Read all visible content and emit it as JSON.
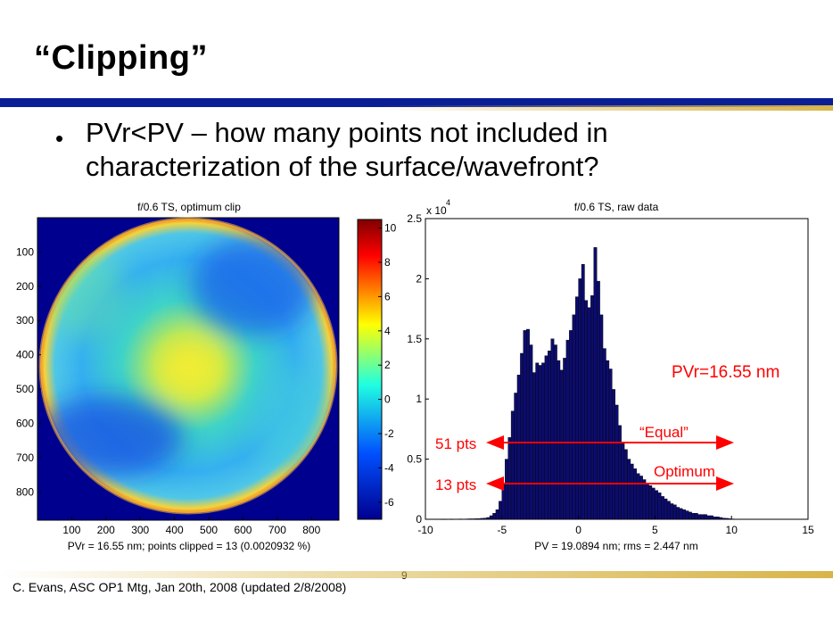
{
  "slide": {
    "title": "“Clipping”",
    "bullet": "PVr<PV – how many points not included in characterization of the surface/wavefront?",
    "slide_number": "9",
    "footer": "C. Evans, ASC OP1 Mtg, Jan 20th, 2008 (updated 2/8/2008)"
  },
  "colors": {
    "accent_bar": "#0a1e96",
    "gold": "#d8b44a",
    "annotation_red": "#ff0000",
    "bar_fill": "#0c0c6e"
  },
  "chart_data": [
    {
      "type": "heatmap",
      "title": "f/0.6 TS, optimum clip",
      "xlabel": "PVr = 16.55 nm; points clipped = 13 (0.0020932 %)",
      "x_ticks": [
        "100",
        "200",
        "300",
        "400",
        "500",
        "600",
        "700",
        "800"
      ],
      "y_ticks": [
        "100",
        "200",
        "300",
        "400",
        "500",
        "600",
        "700",
        "800"
      ],
      "colorbar_ticks": [
        "10",
        "8",
        "6",
        "4",
        "2",
        "0",
        "-2",
        "-4",
        "-6"
      ],
      "colorbar_range": [
        -7,
        10.5
      ]
    },
    {
      "type": "bar",
      "title": "f/0.6 TS, raw data",
      "xlabel": "PV = 19.0894 nm; rms = 2.447 nm",
      "y_multiplier": "x 10",
      "y_multiplier_exp": "4",
      "xlim": [
        -10,
        15
      ],
      "ylim": [
        0,
        2.5
      ],
      "x_ticks": [
        "-10",
        "-5",
        "0",
        "5",
        "10",
        "15"
      ],
      "y_ticks": [
        "0",
        "0.5",
        "1",
        "1.5",
        "2",
        "2.5"
      ],
      "bin_width": 0.2,
      "x": [
        -8.9,
        -8.7,
        -8.5,
        -8.3,
        -8.1,
        -7.9,
        -7.7,
        -7.5,
        -7.3,
        -7.1,
        -6.9,
        -6.7,
        -6.5,
        -6.3,
        -6.1,
        -5.9,
        -5.7,
        -5.5,
        -5.3,
        -5.1,
        -4.9,
        -4.7,
        -4.5,
        -4.3,
        -4.1,
        -3.9,
        -3.7,
        -3.5,
        -3.3,
        -3.1,
        -2.9,
        -2.7,
        -2.5,
        -2.3,
        -2.1,
        -1.9,
        -1.7,
        -1.5,
        -1.3,
        -1.1,
        -0.9,
        -0.7,
        -0.5,
        -0.3,
        -0.1,
        0.1,
        0.3,
        0.5,
        0.7,
        0.9,
        1.1,
        1.3,
        1.5,
        1.7,
        1.9,
        2.1,
        2.3,
        2.5,
        2.7,
        2.9,
        3.1,
        3.3,
        3.5,
        3.7,
        3.9,
        4.1,
        4.3,
        4.5,
        4.7,
        4.9,
        5.1,
        5.3,
        5.5,
        5.7,
        5.9,
        6.1,
        6.3,
        6.5,
        6.7,
        6.9,
        7.1,
        7.3,
        7.5,
        7.7,
        7.9,
        8.1,
        8.3,
        8.5,
        8.7,
        8.9,
        9.1,
        9.3,
        9.5,
        9.7,
        9.9,
        10.1,
        10.3
      ],
      "values": [
        0.001,
        0.001,
        0.002,
        0.001,
        0.002,
        0.002,
        0.003,
        0.002,
        0.003,
        0.004,
        0.004,
        0.005,
        0.006,
        0.008,
        0.01,
        0.015,
        0.03,
        0.05,
        0.08,
        0.15,
        0.3,
        0.5,
        0.68,
        0.9,
        1.05,
        1.2,
        1.38,
        1.57,
        1.58,
        1.45,
        1.22,
        1.3,
        1.28,
        1.3,
        1.36,
        1.4,
        1.5,
        1.45,
        1.32,
        1.24,
        1.34,
        1.49,
        1.57,
        1.7,
        1.85,
        2.0,
        2.12,
        1.82,
        1.76,
        1.86,
        2.26,
        1.98,
        1.7,
        1.42,
        1.32,
        1.25,
        1.08,
        0.95,
        0.78,
        0.64,
        0.58,
        0.5,
        0.46,
        0.42,
        0.38,
        0.36,
        0.33,
        0.3,
        0.28,
        0.26,
        0.24,
        0.22,
        0.19,
        0.17,
        0.15,
        0.13,
        0.12,
        0.1,
        0.09,
        0.08,
        0.07,
        0.06,
        0.05,
        0.05,
        0.04,
        0.04,
        0.04,
        0.03,
        0.03,
        0.02,
        0.02,
        0.015,
        0.01,
        0.008,
        0.005,
        0.003,
        0.002
      ],
      "annotations": {
        "pvr": "PVr=16.55 nm",
        "equal": "“Equal”",
        "optimum": "Optimum",
        "pts_51": "51 pts",
        "pts_13": "13 pts"
      }
    }
  ]
}
